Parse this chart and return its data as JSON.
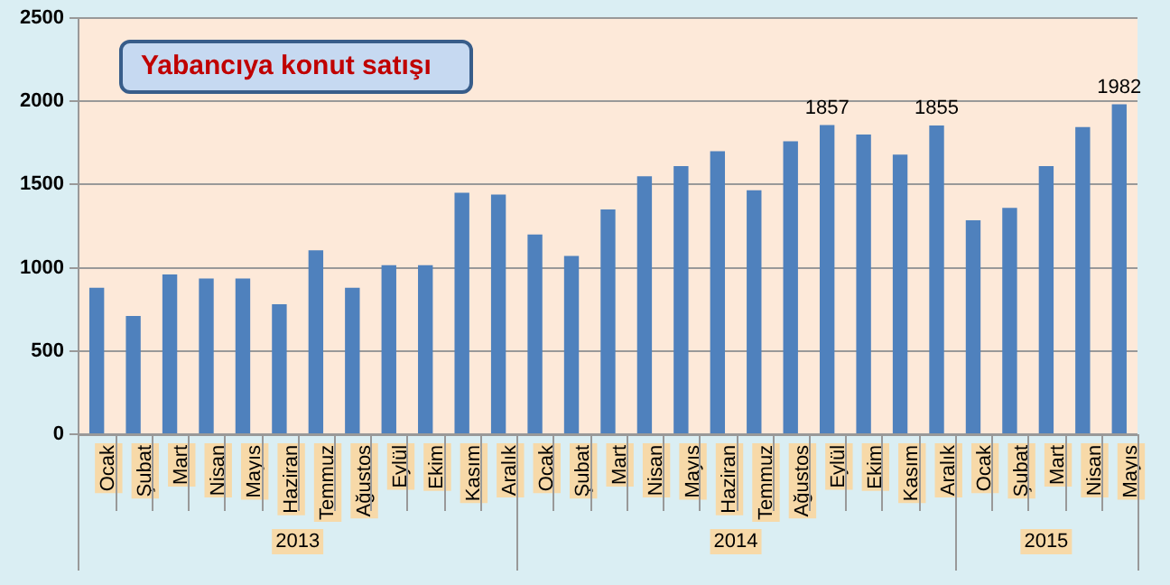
{
  "chart_data": {
    "type": "bar",
    "title": "Yabancıya konut satışı",
    "categories": [
      "Ocak",
      "Şubat",
      "Mart",
      "Nisan",
      "Mayıs",
      "Haziran",
      "Temmuz",
      "Ağustos",
      "Eylül",
      "Ekim",
      "Kasım",
      "Aralık",
      "Ocak",
      "Şubat",
      "Mart",
      "Nisan",
      "Mayıs",
      "Haziran",
      "Temmuz",
      "Ağustos",
      "Eylül",
      "Ekim",
      "Kasım",
      "Aralık",
      "Ocak",
      "Şubat",
      "Mart",
      "Nisan",
      "Mayıs"
    ],
    "values": [
      880,
      710,
      960,
      935,
      935,
      780,
      1105,
      880,
      1015,
      1015,
      1450,
      1440,
      1200,
      1070,
      1350,
      1550,
      1610,
      1700,
      1465,
      1760,
      1857,
      1800,
      1680,
      1855,
      1285,
      1360,
      1610,
      1845,
      1982
    ],
    "value_labels": [
      null,
      null,
      null,
      null,
      null,
      null,
      null,
      null,
      null,
      null,
      null,
      null,
      null,
      null,
      null,
      null,
      null,
      null,
      null,
      null,
      "1857",
      null,
      null,
      "1855",
      null,
      null,
      null,
      null,
      "1982"
    ],
    "color": "#4f81bd",
    "ylim": [
      0,
      2500
    ],
    "yticks": [
      0,
      500,
      1000,
      1500,
      2000,
      2500
    ],
    "grid": "y",
    "annotations": [
      "2013",
      "2014",
      "2015"
    ]
  }
}
